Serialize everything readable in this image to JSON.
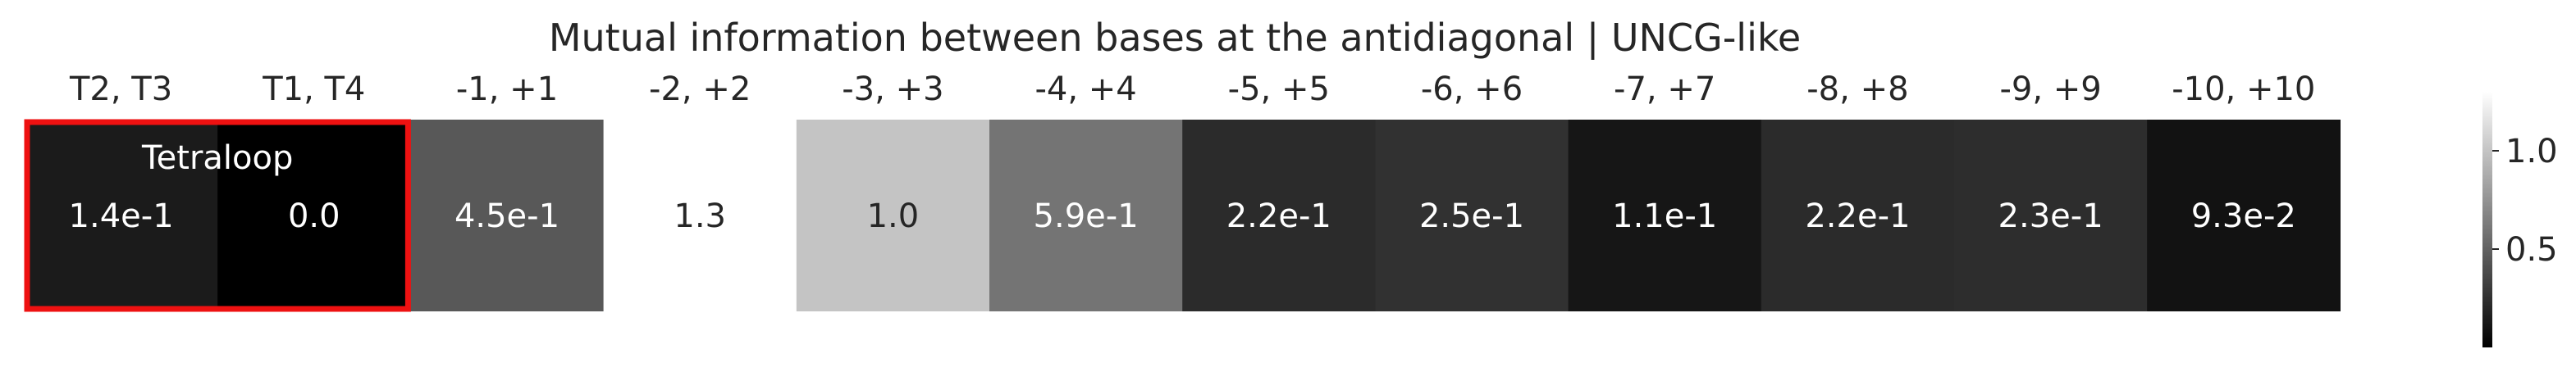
{
  "chart_data": {
    "type": "heatmap",
    "title": "Mutual information between bases at the antidiagonal | UNCG-like",
    "categories": [
      "T2, T3",
      "T1, T4",
      "-1, +1",
      "-2, +2",
      "-3, +3",
      "-4, +4",
      "-5, +5",
      "-6, +6",
      "-7, +7",
      "-8, +8",
      "-9, +9",
      "-10, +10"
    ],
    "values": [
      0.14,
      0.0,
      0.45,
      1.3,
      1.0,
      0.59,
      0.22,
      0.25,
      0.11,
      0.22,
      0.23,
      0.093
    ],
    "value_labels": [
      "1.4e-1",
      "0.0",
      "4.5e-1",
      "1.3",
      "1.0",
      "5.9e-1",
      "2.2e-1",
      "2.5e-1",
      "1.1e-1",
      "2.2e-1",
      "2.3e-1",
      "9.3e-2"
    ],
    "annotation": {
      "text": "Tetraloop",
      "spans": [
        "T2, T3",
        "T1, T4"
      ],
      "color": "#ee1111"
    },
    "colorbar": {
      "colormap": "grayscale",
      "vmin": 0.0,
      "vmax": 1.3,
      "ticks": [
        1.0,
        0.5
      ],
      "tick_labels": [
        "1.0",
        "0.5"
      ]
    },
    "xlabel": "",
    "ylabel": "",
    "grid": false
  }
}
